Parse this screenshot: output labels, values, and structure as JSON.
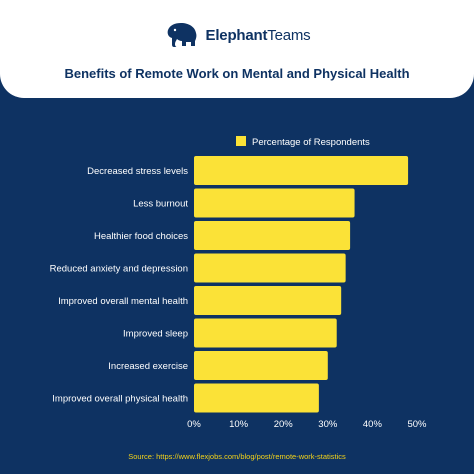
{
  "brand": {
    "name_bold": "Elephant",
    "name_light": "Teams"
  },
  "colors": {
    "background": "#0e3262",
    "bar": "#fbe237",
    "text_light": "#ffffff",
    "source": "#f2d21a"
  },
  "source_text": "Source: https://www.flexjobs.com/blog/post/remote-work-statistics",
  "chart_data": {
    "type": "bar",
    "orientation": "horizontal",
    "title": "Benefits of Remote Work on Mental and Physical Health",
    "categories": [
      "Decreased stress levels",
      "Less burnout",
      "Healthier food choices",
      "Reduced anxiety and depression",
      "Improved overall mental health",
      "Improved sleep",
      "Increased exercise",
      "Improved overall physical health"
    ],
    "series": [
      {
        "name": "Percentage of Respondents",
        "values": [
          48,
          36,
          35,
          34,
          33,
          32,
          30,
          28
        ]
      }
    ],
    "xlim": [
      0,
      50
    ],
    "xticks": [
      0,
      10,
      20,
      30,
      40,
      50
    ],
    "xtick_labels": [
      "0%",
      "10%",
      "20%",
      "30%",
      "40%",
      "50%"
    ],
    "xlabel": "",
    "ylabel": "",
    "grid": false,
    "legend": "top-right"
  }
}
